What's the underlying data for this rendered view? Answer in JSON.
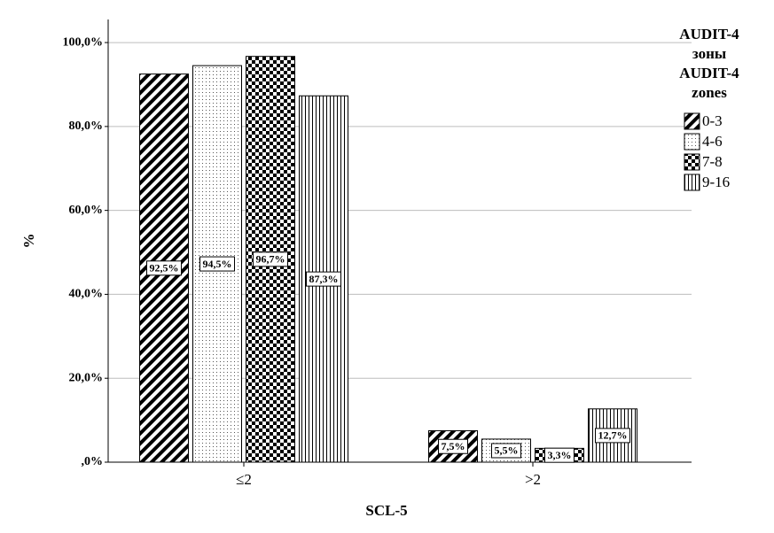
{
  "chart_data": {
    "type": "bar",
    "categories": [
      "≤2",
      ">2"
    ],
    "x_label": "SCL-5",
    "y_label": "%",
    "legend_title": [
      "AUDIT-4",
      "зоны",
      "AUDIT-4",
      "zones"
    ],
    "legend_position": "right",
    "grid": true,
    "ylim": [
      0,
      105.5
    ],
    "yticks": [
      {
        "value": 0,
        "label": ",0%"
      },
      {
        "value": 20,
        "label": "20,0%"
      },
      {
        "value": 40,
        "label": "40,0%"
      },
      {
        "value": 60,
        "label": "60,0%"
      },
      {
        "value": 80,
        "label": "80,0%"
      },
      {
        "value": 100,
        "label": "100,0%"
      }
    ],
    "series": [
      {
        "name": "0-3",
        "color": "#000000",
        "pattern": "diagonal",
        "values": [
          92.5,
          7.5
        ],
        "value_labels": [
          "92,5%",
          "7,5%"
        ]
      },
      {
        "name": "4-6",
        "color": "#000000",
        "pattern": "dots",
        "values": [
          94.5,
          5.5
        ],
        "value_labels": [
          "94,5%",
          "5,5%"
        ]
      },
      {
        "name": "7-8",
        "color": "#000000",
        "pattern": "checker",
        "values": [
          96.7,
          3.3
        ],
        "value_labels": [
          "96,7%",
          "3,3%"
        ]
      },
      {
        "name": "9-16",
        "color": "#000000",
        "pattern": "vertical",
        "values": [
          87.3,
          12.7
        ],
        "value_labels": [
          "87,3%",
          "12,7%"
        ]
      }
    ]
  }
}
